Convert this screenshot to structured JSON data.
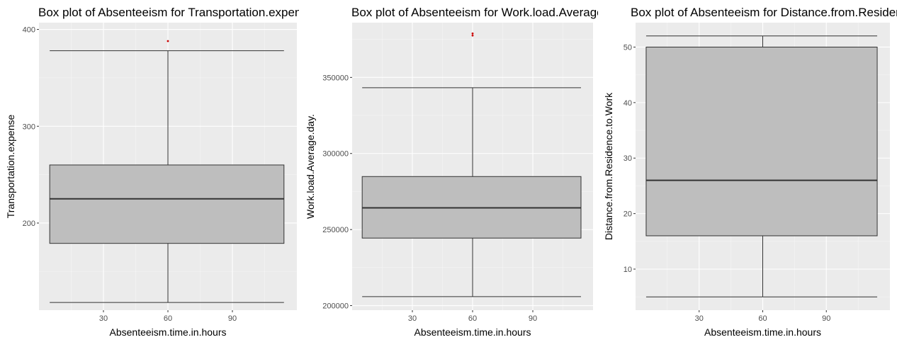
{
  "chart_data": [
    {
      "type": "box",
      "title": "Box plot of Absenteeism for Transportation.expense",
      "xlabel": "Absenteeism.time.in.hours",
      "ylabel": "Transportation.expense",
      "xlim": [
        0,
        120
      ],
      "xticks": [
        30,
        60,
        90
      ],
      "ylim": [
        110,
        407
      ],
      "yticks": [
        200,
        300,
        400
      ],
      "tick_format": "plain",
      "box": {
        "xmin": 5,
        "xmax": 114,
        "whisker_low": 118,
        "q1": 179,
        "median": 225,
        "q3": 260,
        "whisker_high": 378,
        "whisker_x": 60
      },
      "outliers": [
        {
          "x": 60,
          "y": 388
        }
      ],
      "grid": true
    },
    {
      "type": "box",
      "title": "Box plot of Absenteeism for Work.load.Average.day.",
      "xlabel": "Absenteeism.time.in.hours",
      "ylabel": "Work.load.Average.day.",
      "xlim": [
        0,
        120
      ],
      "xticks": [
        30,
        60,
        90
      ],
      "ylim": [
        197000,
        386000
      ],
      "yticks": [
        200000,
        250000,
        300000,
        350000
      ],
      "tick_format": "plain",
      "box": {
        "xmin": 5,
        "xmax": 114,
        "whisker_low": 205917,
        "q1": 244387,
        "median": 264249,
        "q3": 284853,
        "whisker_high": 343253,
        "whisker_x": 60
      },
      "outliers": [
        {
          "x": 60,
          "y": 378884
        },
        {
          "x": 60,
          "y": 377550
        }
      ],
      "grid": true
    },
    {
      "type": "box",
      "title": "Box plot of Absenteeism for Distance.from.Residence.to.Work",
      "xlabel": "Absenteeism.time.in.hours",
      "ylabel": "Distance.from.Residence.to.Work",
      "xlim": [
        0,
        120
      ],
      "xticks": [
        30,
        60,
        90
      ],
      "ylim": [
        2.6,
        54.4
      ],
      "yticks": [
        10,
        20,
        30,
        40,
        50
      ],
      "tick_format": "plain",
      "box": {
        "xmin": 5,
        "xmax": 114,
        "whisker_low": 5,
        "q1": 16,
        "median": 26,
        "q3": 50,
        "whisker_high": 52,
        "whisker_x": 60
      },
      "outliers": [],
      "grid": true
    }
  ],
  "colors": {
    "panel_background": "#ebebeb",
    "grid_major": "#ffffff",
    "box_fill": "#bebebe",
    "box_stroke": "#333333",
    "outlier": "#cc0000"
  }
}
